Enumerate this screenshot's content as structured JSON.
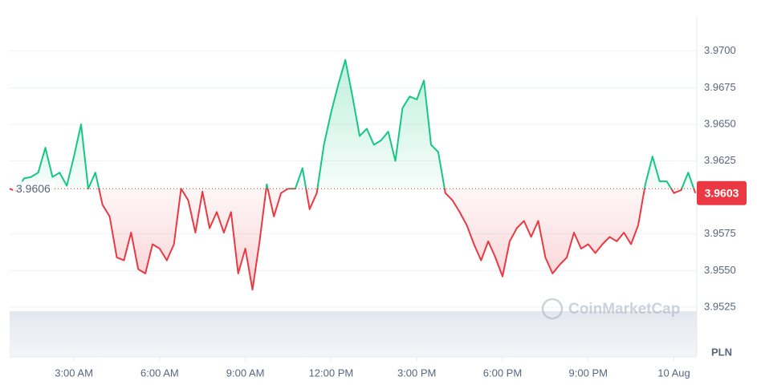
{
  "chart_data": {
    "type": "line",
    "currency": "PLN",
    "watermark": "CoinMarketCap",
    "baseline": 3.9606,
    "last_price": 3.9603,
    "up_color": "#16c784",
    "down_color": "#ea3943",
    "grid": true,
    "xlim": [
      0.75,
      24.8
    ],
    "ylim": [
      3.9491,
      3.9724
    ],
    "xticks": [
      {
        "value": 3,
        "label": "3:00 AM"
      },
      {
        "value": 6,
        "label": "6:00 AM"
      },
      {
        "value": 9,
        "label": "9:00 AM"
      },
      {
        "value": 12,
        "label": "12:00 PM"
      },
      {
        "value": 15,
        "label": "3:00 PM"
      },
      {
        "value": 18,
        "label": "6:00 PM"
      },
      {
        "value": 21,
        "label": "9:00 PM"
      },
      {
        "value": 24,
        "label": "10 Aug"
      }
    ],
    "yticks": [
      3.9525,
      3.955,
      3.9575,
      3.9625,
      3.965,
      3.9675,
      3.97
    ],
    "ytick_labels": [
      "3.9525",
      "3.9550",
      "3.9575",
      "3.9625",
      "3.9650",
      "3.9675",
      "3.9700"
    ],
    "x": [
      0.75,
      1,
      1.25,
      1.5,
      1.75,
      2,
      2.25,
      2.5,
      2.75,
      3,
      3.25,
      3.5,
      3.75,
      4,
      4.25,
      4.5,
      4.75,
      5,
      5.25,
      5.5,
      5.75,
      6,
      6.25,
      6.5,
      6.75,
      7,
      7.25,
      7.5,
      7.75,
      8,
      8.25,
      8.5,
      8.75,
      9,
      9.25,
      9.5,
      9.75,
      10,
      10.25,
      10.5,
      10.75,
      11,
      11.25,
      11.5,
      11.75,
      12,
      12.25,
      12.5,
      12.75,
      13,
      13.25,
      13.5,
      13.75,
      14,
      14.25,
      14.5,
      14.75,
      15,
      15.25,
      15.5,
      15.75,
      16,
      16.25,
      16.5,
      16.75,
      17,
      17.25,
      17.5,
      17.75,
      18,
      18.25,
      18.5,
      18.75,
      19,
      19.25,
      19.5,
      19.75,
      20,
      20.25,
      20.5,
      20.75,
      21,
      21.25,
      21.5,
      21.75,
      22,
      22.25,
      22.5,
      22.75,
      23,
      23.25,
      23.5,
      23.75,
      24,
      24.25,
      24.5,
      24.75
    ],
    "series": [
      {
        "name": "PLN",
        "values": [
          3.9606,
          3.9604,
          3.9613,
          3.9614,
          3.9617,
          3.9634,
          3.9614,
          3.9617,
          3.9608,
          3.9628,
          3.965,
          3.9606,
          3.9617,
          3.9595,
          3.9587,
          3.9559,
          3.9557,
          3.9576,
          3.9551,
          3.9548,
          3.9568,
          3.9565,
          3.9557,
          3.9568,
          3.9606,
          3.9598,
          3.9576,
          3.9604,
          3.9579,
          3.959,
          3.9576,
          3.959,
          3.9548,
          3.9565,
          3.9537,
          3.957,
          3.9609,
          3.9587,
          3.9603,
          3.9606,
          3.9606,
          3.962,
          3.9592,
          3.9603,
          3.9636,
          3.9658,
          3.9677,
          3.9694,
          3.9669,
          3.9642,
          3.9647,
          3.9636,
          3.9639,
          3.9645,
          3.9625,
          3.9661,
          3.9669,
          3.9667,
          3.968,
          3.9636,
          3.9631,
          3.9603,
          3.9598,
          3.959,
          3.9581,
          3.9568,
          3.9557,
          3.957,
          3.9559,
          3.9546,
          3.957,
          3.9579,
          3.9584,
          3.9573,
          3.9584,
          3.9559,
          3.9548,
          3.9554,
          3.9559,
          3.9576,
          3.9565,
          3.9568,
          3.9562,
          3.9568,
          3.9573,
          3.957,
          3.9576,
          3.9568,
          3.9581,
          3.9609,
          3.9628,
          3.9611,
          3.9611,
          3.9603,
          3.9605,
          3.9617,
          3.9603
        ]
      }
    ]
  }
}
